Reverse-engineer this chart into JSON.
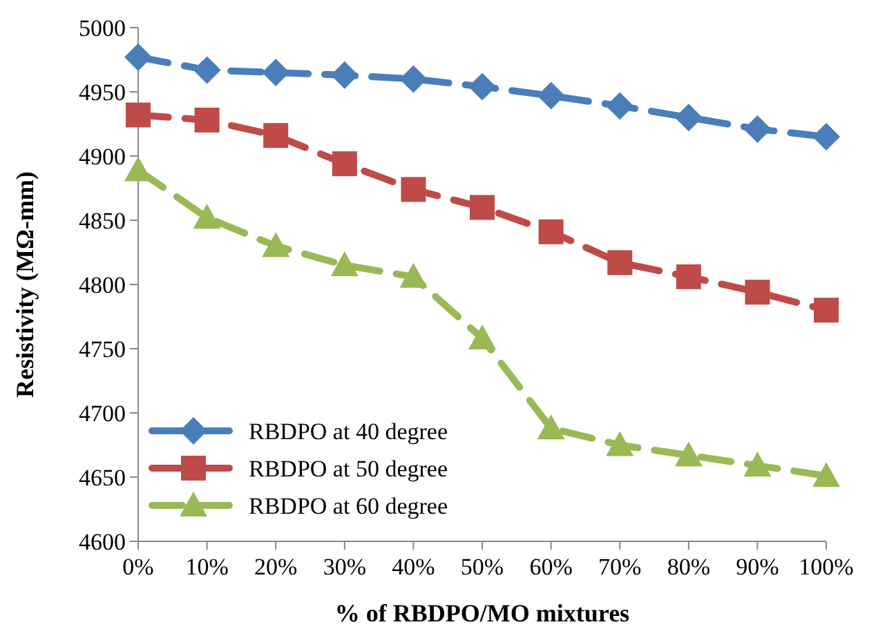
{
  "chart_data": {
    "type": "line",
    "xlabel": "% of RBDPO/MO mixtures",
    "ylabel": "Resistivity (MΩ-mm)",
    "categories": [
      "0%",
      "10%",
      "20%",
      "30%",
      "40%",
      "50%",
      "60%",
      "70%",
      "80%",
      "90%",
      "100%"
    ],
    "ylim": [
      4600,
      5000
    ],
    "yticks": [
      4600,
      4650,
      4700,
      4750,
      4800,
      4850,
      4900,
      4950,
      5000
    ],
    "legend": "bottom left",
    "line_style": "dashed",
    "grid": false,
    "series": [
      {
        "name": "RBDPO at 40 degree",
        "color": "#4a7ebb",
        "marker": "diamond",
        "values": [
          4977,
          4967,
          4965,
          4963,
          4960,
          4954,
          4947,
          4939,
          4930,
          4921,
          4915
        ]
      },
      {
        "name": "RBDPO at 50 degree",
        "color": "#be4b48",
        "marker": "square",
        "values": [
          4932,
          4928,
          4916,
          4894,
          4874,
          4860,
          4841,
          4817,
          4806,
          4794,
          4780
        ]
      },
      {
        "name": "RBDPO at 60 degree",
        "color": "#98b954",
        "marker": "triangle",
        "values": [
          4889,
          4852,
          4830,
          4815,
          4806,
          4758,
          4688,
          4675,
          4667,
          4659,
          4651
        ]
      }
    ]
  }
}
